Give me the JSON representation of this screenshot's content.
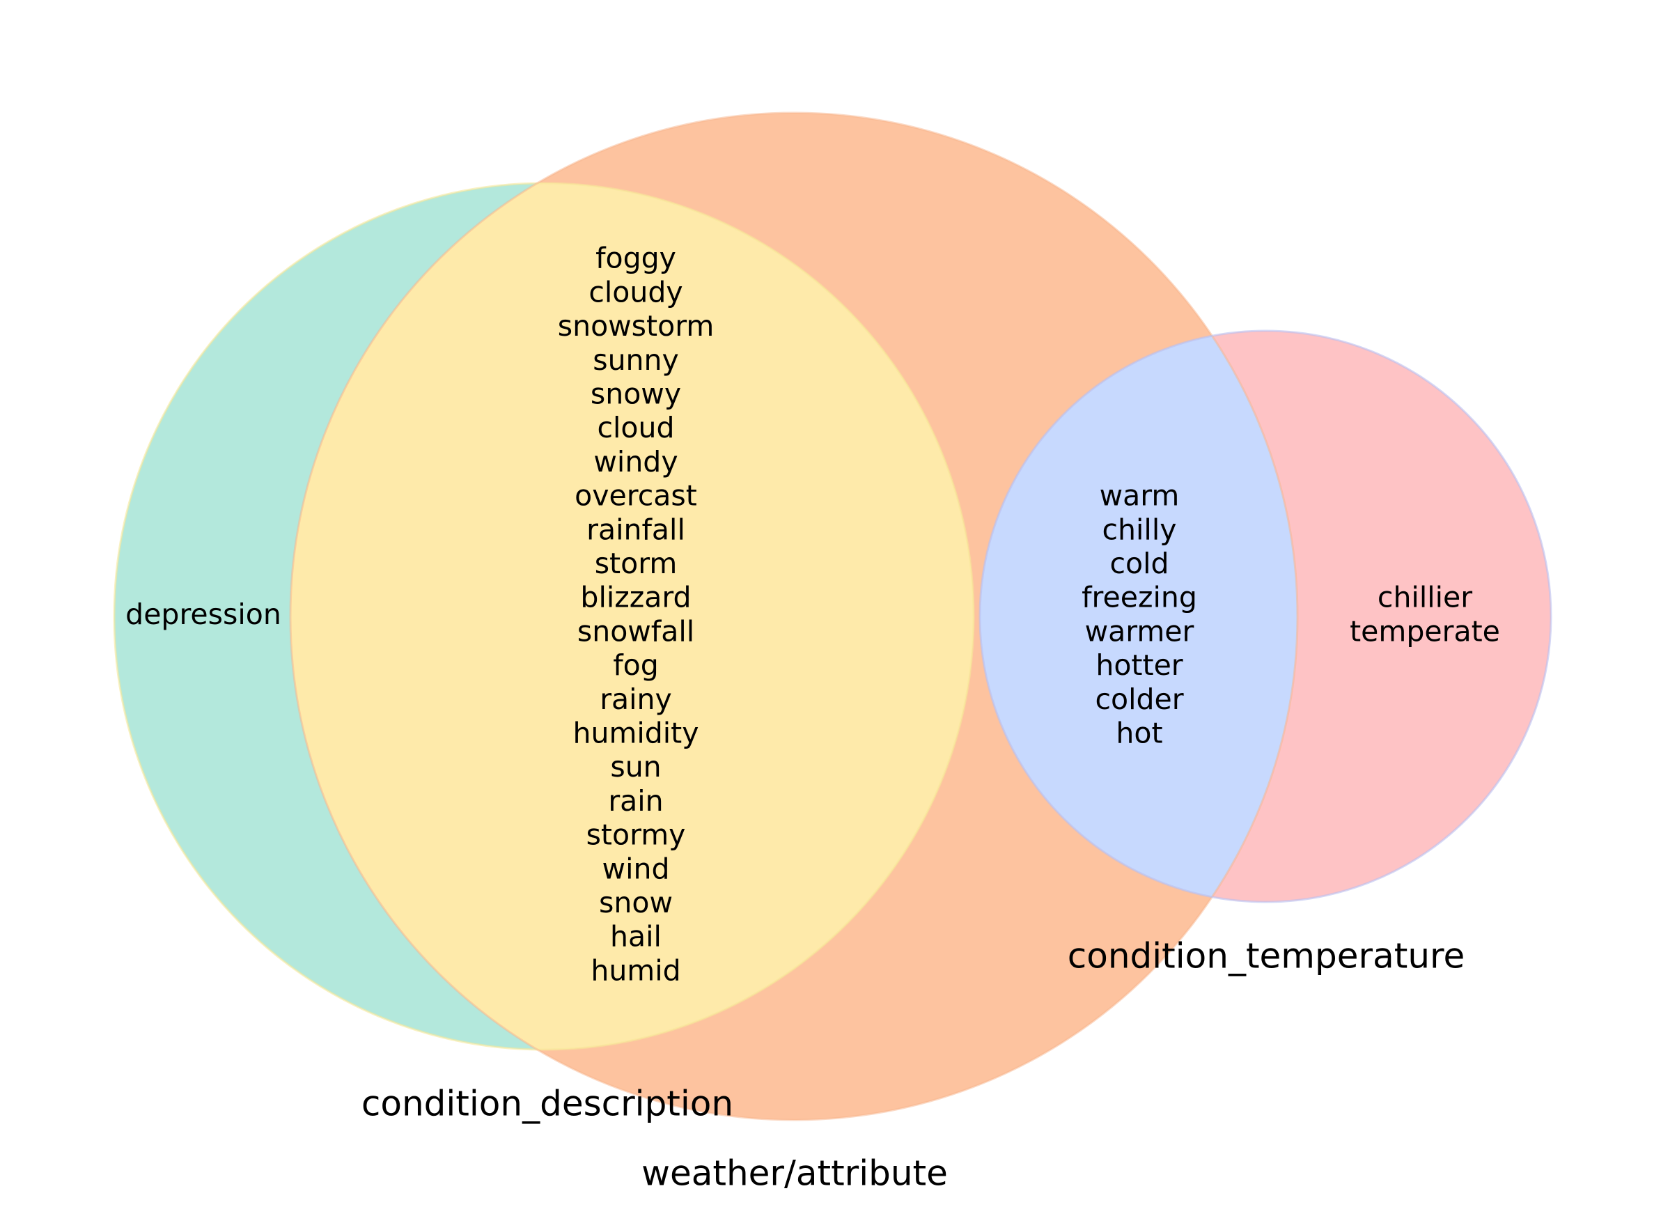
{
  "diagram": {
    "type": "venn",
    "sets": [
      {
        "id": "condition_description",
        "label": "condition_description",
        "color": "#b3e8dc"
      },
      {
        "id": "weather_attribute",
        "label": "weather/attribute",
        "color": "#fdc39f"
      },
      {
        "id": "condition_temperature",
        "label": "condition_temperature",
        "color": "#fec3c5"
      }
    ],
    "intersection_colors": {
      "description_and_weather": "#feeaaa",
      "weather_and_temperature": "#c7d9fe"
    },
    "regions": {
      "description_only": [
        "depression"
      ],
      "description_and_weather": [
        "foggy",
        "cloudy",
        "snowstorm",
        "sunny",
        "snowy",
        "cloud",
        "windy",
        "overcast",
        "rainfall",
        "storm",
        "blizzard",
        "snowfall",
        "fog",
        "rainy",
        "humidity",
        "sun",
        "rain",
        "stormy",
        "wind",
        "snow",
        "hail",
        "humid"
      ],
      "weather_and_temperature": [
        "warm",
        "chilly",
        "cold",
        "freezing",
        "warmer",
        "hotter",
        "colder",
        "hot"
      ],
      "temperature_only": [
        "chillier",
        "temperate"
      ]
    }
  }
}
